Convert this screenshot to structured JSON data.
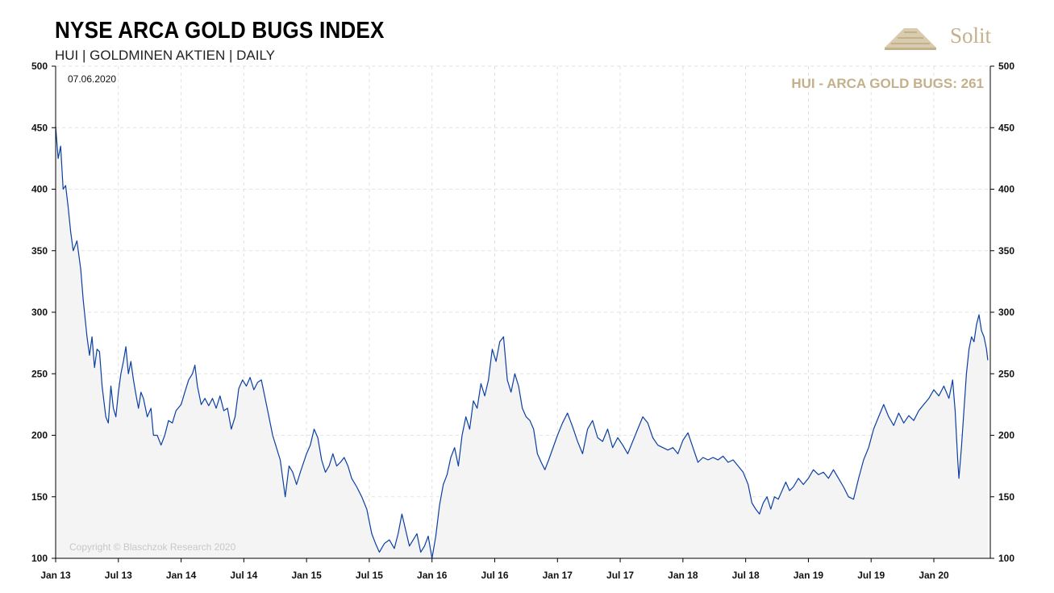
{
  "header": {
    "title": "NYSE ARCA GOLD BUGS INDEX",
    "subtitle": "HUI | GOLDMINEN AKTIEN | DAILY",
    "logo_text": "Solit"
  },
  "chart_data": {
    "type": "area",
    "date_label": "07.06.2020",
    "annotation": "HUI - ARCA GOLD BUGS: 261",
    "copyright": "Copyright © Blaschzok Research 2020",
    "ylim": [
      100,
      500
    ],
    "yticks": [
      100,
      150,
      200,
      250,
      300,
      350,
      400,
      450,
      500
    ],
    "xlim": [
      2013.0,
      2020.45
    ],
    "xticks": [
      {
        "label": "Jan 13",
        "x": 2013.0
      },
      {
        "label": "Jul 13",
        "x": 2013.5
      },
      {
        "label": "Jan 14",
        "x": 2014.0
      },
      {
        "label": "Jul 14",
        "x": 2014.5
      },
      {
        "label": "Jan 15",
        "x": 2015.0
      },
      {
        "label": "Jul 15",
        "x": 2015.5
      },
      {
        "label": "Jan 16",
        "x": 2016.0
      },
      {
        "label": "Jul 16",
        "x": 2016.5
      },
      {
        "label": "Jan 17",
        "x": 2017.0
      },
      {
        "label": "Jul 17",
        "x": 2017.5
      },
      {
        "label": "Jan 18",
        "x": 2018.0
      },
      {
        "label": "Jul 18",
        "x": 2018.5
      },
      {
        "label": "Jan 19",
        "x": 2019.0
      },
      {
        "label": "Jul 19",
        "x": 2019.5
      },
      {
        "label": "Jan 20",
        "x": 2020.0
      }
    ],
    "grid": true,
    "colors": {
      "line": "#0b3fa3",
      "fill": "#f4f4f4",
      "accent": "#c4b08a"
    },
    "series": [
      {
        "values": [
          [
            2013.0,
            451
          ],
          [
            2013.02,
            425
          ],
          [
            2013.04,
            435
          ],
          [
            2013.06,
            400
          ],
          [
            2013.08,
            403
          ],
          [
            2013.1,
            385
          ],
          [
            2013.12,
            365
          ],
          [
            2013.14,
            350
          ],
          [
            2013.17,
            358
          ],
          [
            2013.2,
            335
          ],
          [
            2013.22,
            310
          ],
          [
            2013.25,
            280
          ],
          [
            2013.27,
            265
          ],
          [
            2013.29,
            280
          ],
          [
            2013.31,
            255
          ],
          [
            2013.33,
            270
          ],
          [
            2013.35,
            268
          ],
          [
            2013.37,
            240
          ],
          [
            2013.4,
            215
          ],
          [
            2013.42,
            210
          ],
          [
            2013.44,
            240
          ],
          [
            2013.46,
            222
          ],
          [
            2013.48,
            215
          ],
          [
            2013.5,
            235
          ],
          [
            2013.52,
            250
          ],
          [
            2013.54,
            260
          ],
          [
            2013.56,
            272
          ],
          [
            2013.58,
            250
          ],
          [
            2013.6,
            260
          ],
          [
            2013.62,
            245
          ],
          [
            2013.64,
            233
          ],
          [
            2013.66,
            222
          ],
          [
            2013.68,
            235
          ],
          [
            2013.7,
            230
          ],
          [
            2013.73,
            215
          ],
          [
            2013.76,
            222
          ],
          [
            2013.78,
            200
          ],
          [
            2013.81,
            200
          ],
          [
            2013.84,
            192
          ],
          [
            2013.87,
            200
          ],
          [
            2013.9,
            212
          ],
          [
            2013.93,
            210
          ],
          [
            2013.96,
            220
          ],
          [
            2014.0,
            225
          ],
          [
            2014.03,
            235
          ],
          [
            2014.06,
            245
          ],
          [
            2014.09,
            250
          ],
          [
            2014.11,
            257
          ],
          [
            2014.13,
            240
          ],
          [
            2014.16,
            225
          ],
          [
            2014.19,
            230
          ],
          [
            2014.22,
            224
          ],
          [
            2014.25,
            230
          ],
          [
            2014.28,
            222
          ],
          [
            2014.31,
            232
          ],
          [
            2014.34,
            220
          ],
          [
            2014.37,
            222
          ],
          [
            2014.4,
            205
          ],
          [
            2014.43,
            215
          ],
          [
            2014.46,
            238
          ],
          [
            2014.49,
            245
          ],
          [
            2014.52,
            240
          ],
          [
            2014.55,
            247
          ],
          [
            2014.58,
            237
          ],
          [
            2014.61,
            243
          ],
          [
            2014.64,
            245
          ],
          [
            2014.67,
            230
          ],
          [
            2014.7,
            215
          ],
          [
            2014.73,
            200
          ],
          [
            2014.76,
            190
          ],
          [
            2014.79,
            180
          ],
          [
            2014.81,
            165
          ],
          [
            2014.83,
            150
          ],
          [
            2014.86,
            175
          ],
          [
            2014.89,
            170
          ],
          [
            2014.92,
            160
          ],
          [
            2014.95,
            170
          ],
          [
            2015.0,
            185
          ],
          [
            2015.03,
            192
          ],
          [
            2015.06,
            205
          ],
          [
            2015.09,
            198
          ],
          [
            2015.12,
            180
          ],
          [
            2015.15,
            170
          ],
          [
            2015.18,
            175
          ],
          [
            2015.21,
            185
          ],
          [
            2015.24,
            175
          ],
          [
            2015.27,
            178
          ],
          [
            2015.3,
            182
          ],
          [
            2015.33,
            175
          ],
          [
            2015.36,
            165
          ],
          [
            2015.4,
            158
          ],
          [
            2015.44,
            150
          ],
          [
            2015.48,
            140
          ],
          [
            2015.52,
            120
          ],
          [
            2015.55,
            112
          ],
          [
            2015.58,
            105
          ],
          [
            2015.62,
            112
          ],
          [
            2015.66,
            115
          ],
          [
            2015.7,
            108
          ],
          [
            2015.73,
            120
          ],
          [
            2015.76,
            136
          ],
          [
            2015.79,
            123
          ],
          [
            2015.82,
            110
          ],
          [
            2015.85,
            115
          ],
          [
            2015.88,
            120
          ],
          [
            2015.91,
            105
          ],
          [
            2015.94,
            110
          ],
          [
            2015.97,
            118
          ],
          [
            2016.0,
            100
          ],
          [
            2016.03,
            118
          ],
          [
            2016.06,
            143
          ],
          [
            2016.09,
            160
          ],
          [
            2016.12,
            168
          ],
          [
            2016.15,
            182
          ],
          [
            2016.18,
            190
          ],
          [
            2016.21,
            175
          ],
          [
            2016.24,
            200
          ],
          [
            2016.27,
            215
          ],
          [
            2016.3,
            205
          ],
          [
            2016.33,
            228
          ],
          [
            2016.36,
            222
          ],
          [
            2016.39,
            242
          ],
          [
            2016.42,
            232
          ],
          [
            2016.45,
            245
          ],
          [
            2016.48,
            270
          ],
          [
            2016.51,
            260
          ],
          [
            2016.54,
            276
          ],
          [
            2016.57,
            280
          ],
          [
            2016.6,
            245
          ],
          [
            2016.63,
            235
          ],
          [
            2016.66,
            250
          ],
          [
            2016.69,
            240
          ],
          [
            2016.72,
            222
          ],
          [
            2016.75,
            215
          ],
          [
            2016.78,
            212
          ],
          [
            2016.81,
            205
          ],
          [
            2016.84,
            185
          ],
          [
            2016.87,
            178
          ],
          [
            2016.9,
            172
          ],
          [
            2016.93,
            180
          ],
          [
            2017.0,
            200
          ],
          [
            2017.04,
            210
          ],
          [
            2017.08,
            218
          ],
          [
            2017.12,
            207
          ],
          [
            2017.16,
            195
          ],
          [
            2017.2,
            185
          ],
          [
            2017.24,
            205
          ],
          [
            2017.28,
            212
          ],
          [
            2017.32,
            198
          ],
          [
            2017.36,
            195
          ],
          [
            2017.4,
            205
          ],
          [
            2017.44,
            190
          ],
          [
            2017.48,
            198
          ],
          [
            2017.52,
            192
          ],
          [
            2017.56,
            185
          ],
          [
            2017.6,
            195
          ],
          [
            2017.64,
            205
          ],
          [
            2017.68,
            215
          ],
          [
            2017.72,
            210
          ],
          [
            2017.76,
            198
          ],
          [
            2017.8,
            192
          ],
          [
            2017.84,
            190
          ],
          [
            2017.88,
            188
          ],
          [
            2017.92,
            190
          ],
          [
            2017.96,
            185
          ],
          [
            2018.0,
            196
          ],
          [
            2018.04,
            202
          ],
          [
            2018.08,
            190
          ],
          [
            2018.12,
            178
          ],
          [
            2018.16,
            182
          ],
          [
            2018.2,
            180
          ],
          [
            2018.24,
            182
          ],
          [
            2018.28,
            180
          ],
          [
            2018.32,
            183
          ],
          [
            2018.36,
            178
          ],
          [
            2018.4,
            180
          ],
          [
            2018.44,
            175
          ],
          [
            2018.48,
            170
          ],
          [
            2018.52,
            160
          ],
          [
            2018.55,
            145
          ],
          [
            2018.58,
            140
          ],
          [
            2018.61,
            136
          ],
          [
            2018.64,
            145
          ],
          [
            2018.67,
            150
          ],
          [
            2018.7,
            140
          ],
          [
            2018.73,
            150
          ],
          [
            2018.76,
            148
          ],
          [
            2018.79,
            155
          ],
          [
            2018.82,
            162
          ],
          [
            2018.85,
            155
          ],
          [
            2018.88,
            158
          ],
          [
            2018.92,
            165
          ],
          [
            2018.96,
            160
          ],
          [
            2019.0,
            165
          ],
          [
            2019.04,
            172
          ],
          [
            2019.08,
            168
          ],
          [
            2019.12,
            170
          ],
          [
            2019.16,
            165
          ],
          [
            2019.2,
            172
          ],
          [
            2019.24,
            165
          ],
          [
            2019.28,
            158
          ],
          [
            2019.32,
            150
          ],
          [
            2019.36,
            148
          ],
          [
            2019.4,
            165
          ],
          [
            2019.44,
            180
          ],
          [
            2019.48,
            190
          ],
          [
            2019.52,
            205
          ],
          [
            2019.56,
            215
          ],
          [
            2019.6,
            225
          ],
          [
            2019.64,
            215
          ],
          [
            2019.68,
            208
          ],
          [
            2019.72,
            218
          ],
          [
            2019.76,
            210
          ],
          [
            2019.8,
            216
          ],
          [
            2019.84,
            212
          ],
          [
            2019.88,
            220
          ],
          [
            2019.92,
            225
          ],
          [
            2019.96,
            230
          ],
          [
            2020.0,
            237
          ],
          [
            2020.04,
            232
          ],
          [
            2020.08,
            240
          ],
          [
            2020.12,
            230
          ],
          [
            2020.15,
            245
          ],
          [
            2020.17,
            220
          ],
          [
            2020.19,
            180
          ],
          [
            2020.2,
            165
          ],
          [
            2020.22,
            190
          ],
          [
            2020.24,
            220
          ],
          [
            2020.26,
            250
          ],
          [
            2020.28,
            270
          ],
          [
            2020.3,
            280
          ],
          [
            2020.32,
            276
          ],
          [
            2020.34,
            290
          ],
          [
            2020.36,
            298
          ],
          [
            2020.38,
            285
          ],
          [
            2020.4,
            280
          ],
          [
            2020.42,
            270
          ],
          [
            2020.43,
            261
          ]
        ]
      }
    ]
  }
}
